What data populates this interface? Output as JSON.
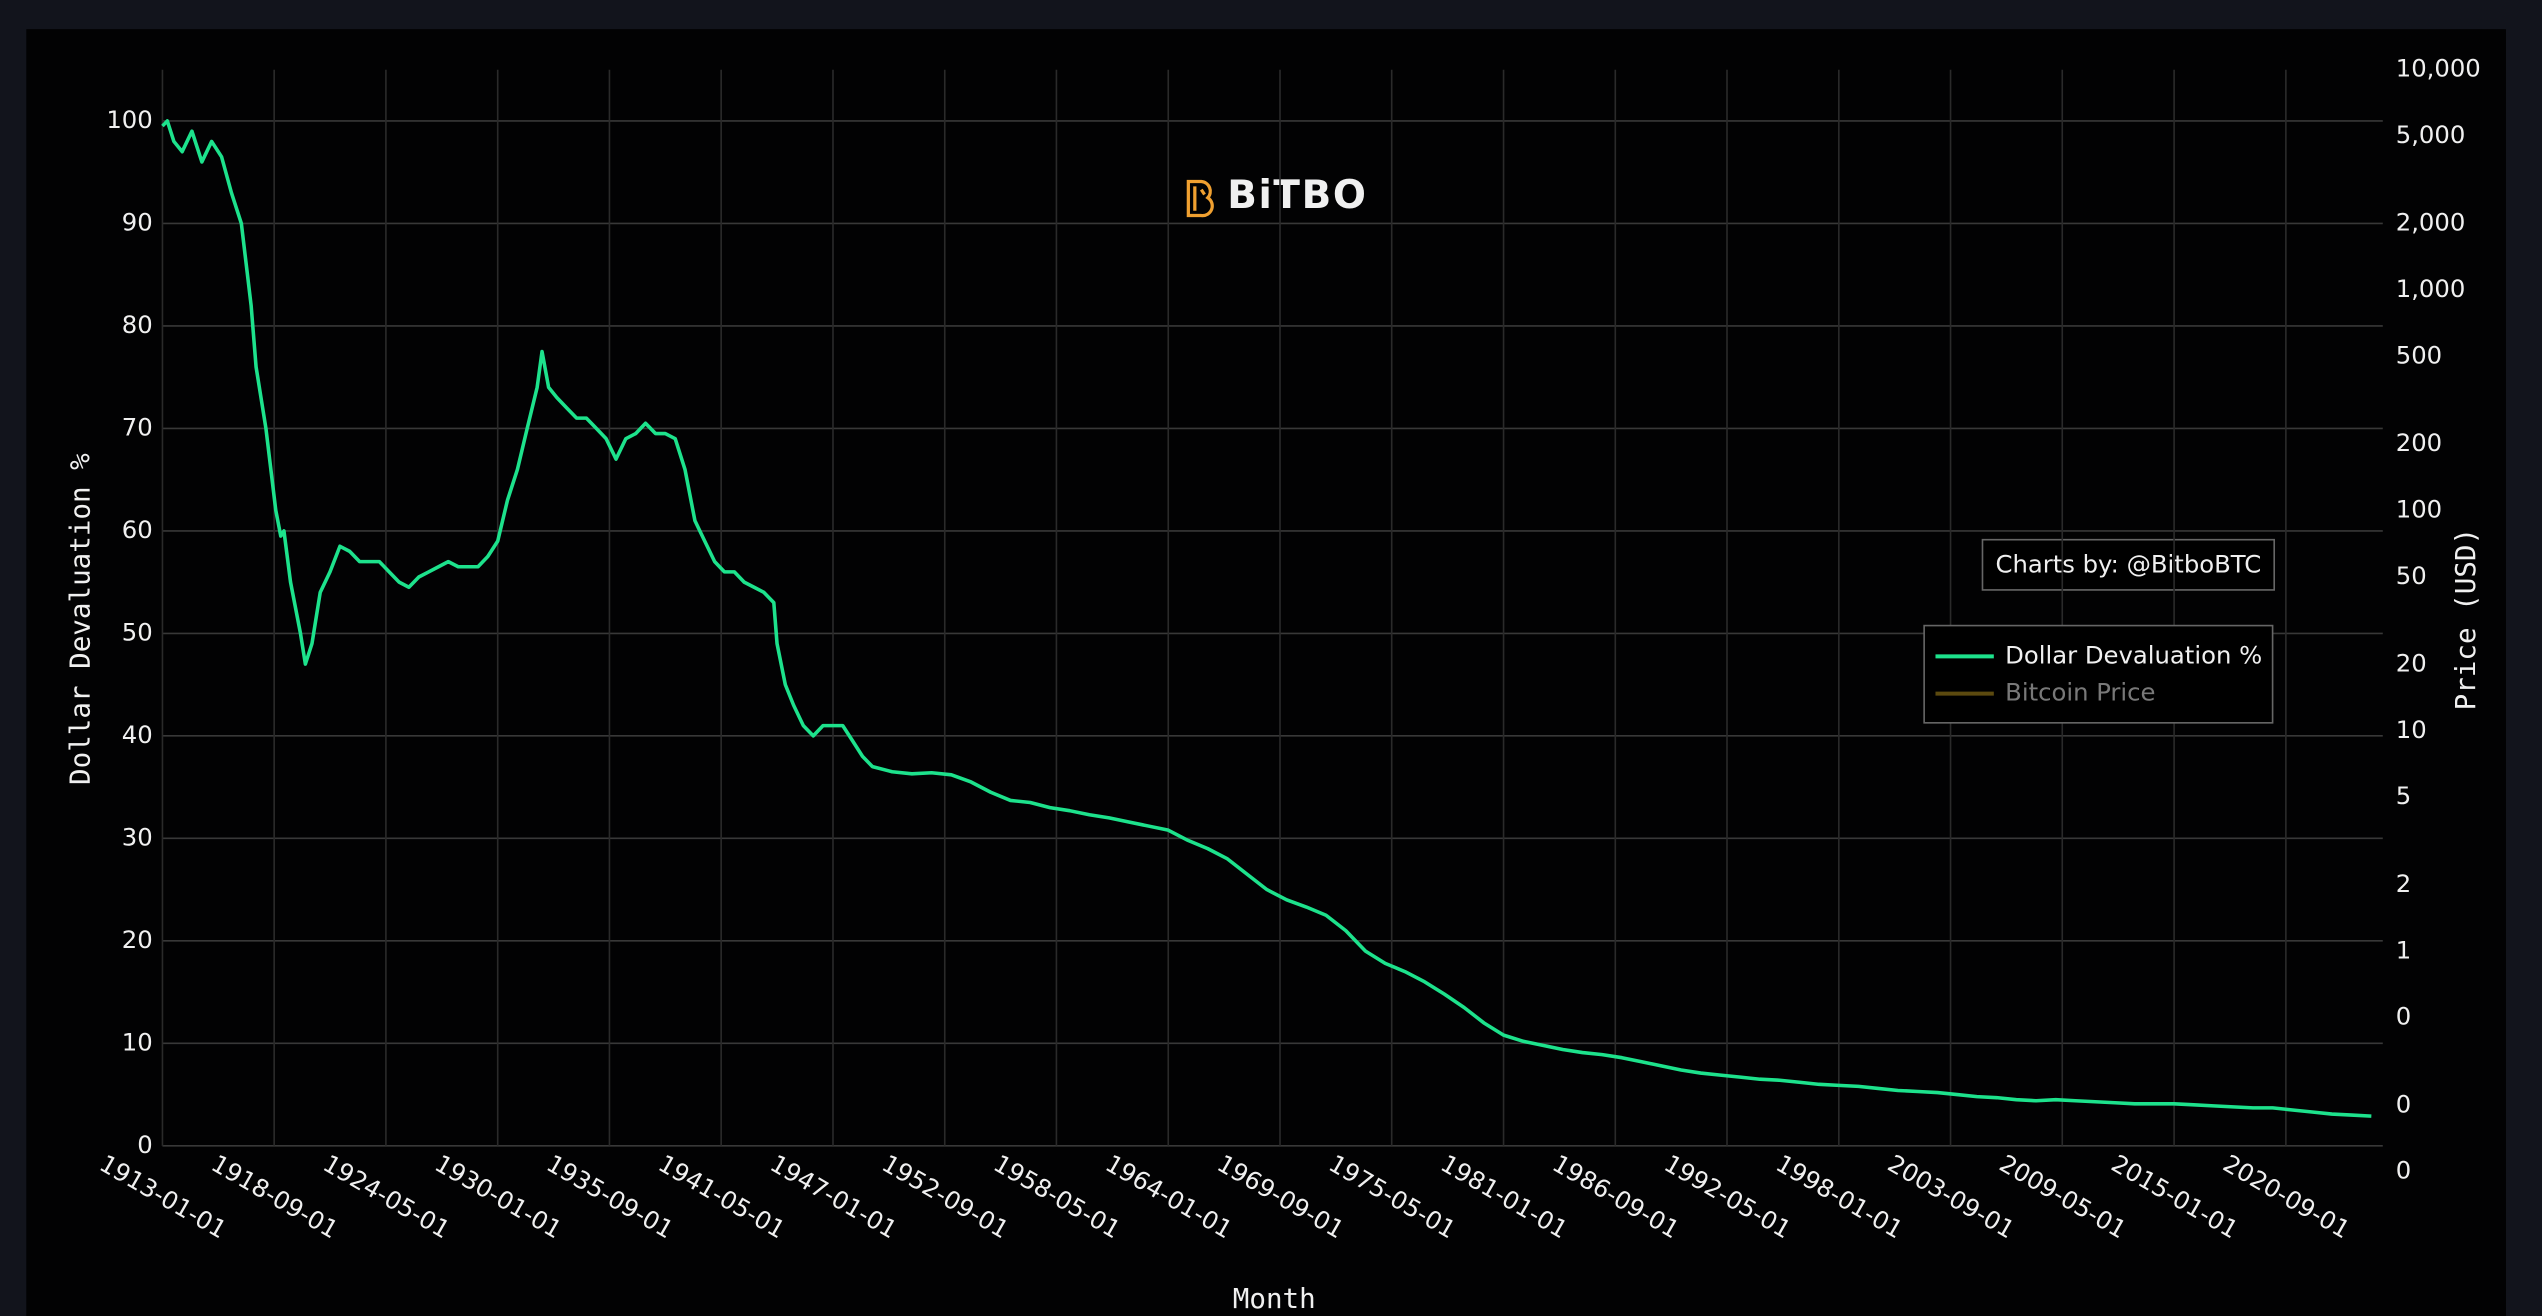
{
  "logo": "BiTBO",
  "chart_data": {
    "type": "line",
    "annotation": "Charts by: @BitboBTC",
    "x_label": "Month",
    "y_label": "Dollar Devaluation %",
    "y2_label": "Price (USD)",
    "grid": true,
    "legend": "right",
    "xlim": [
      "1913-01-01",
      "2025-08-01"
    ],
    "xticks": [
      "1913-01-01",
      "1918-09-01",
      "1924-05-01",
      "1930-01-01",
      "1935-09-01",
      "1941-05-01",
      "1947-01-01",
      "1952-09-01",
      "1958-05-01",
      "1964-01-01",
      "1969-09-01",
      "1975-05-01",
      "1981-01-01",
      "1986-09-01",
      "1992-05-01",
      "1998-01-01",
      "2003-09-01",
      "2009-05-01",
      "2015-01-01",
      "2020-09-01"
    ],
    "ylim": [
      0,
      105
    ],
    "yticks": [
      0,
      10,
      20,
      30,
      40,
      50,
      60,
      70,
      80,
      90,
      100
    ],
    "y2lim": [
      0.131,
      10000
    ],
    "y2log": true,
    "y2ticks": [
      {
        "value": 10000,
        "label": "10,000"
      },
      {
        "value": 5000,
        "label": "5,000"
      },
      {
        "value": 2000,
        "label": "2,000"
      },
      {
        "value": 1000,
        "label": "1,000"
      },
      500,
      200,
      100,
      50,
      20,
      10,
      5,
      2,
      1,
      {
        "value": 0.5,
        "label": "0"
      },
      {
        "value": 0.2,
        "label": "0"
      },
      {
        "value": 0.1,
        "label": "0"
      }
    ],
    "x": [
      "1913-01-01",
      "1913-04-01",
      "1913-08-01",
      "1914-01-01",
      "1914-07-01",
      "1915-01-01",
      "1915-07-01",
      "1916-01-01",
      "1916-07-01",
      "1917-01-01",
      "1917-07-01",
      "1917-10-01",
      "1918-04-01",
      "1918-10-01",
      "1919-01-01",
      "1919-03-01",
      "1919-07-01",
      "1920-01-01",
      "1920-04-01",
      "1920-08-01",
      "1921-01-01",
      "1921-07-01",
      "1922-01-01",
      "1922-07-01",
      "1923-01-01",
      "1923-07-01",
      "1924-01-01",
      "1924-07-01",
      "1925-01-01",
      "1925-07-01",
      "1926-01-01",
      "1926-07-01",
      "1927-01-01",
      "1927-07-01",
      "1928-01-01",
      "1929-01-01",
      "1929-07-01",
      "1930-01-01",
      "1930-07-01",
      "1931-01-01",
      "1931-07-01",
      "1932-01-01",
      "1932-04-01",
      "1932-08-01",
      "1933-01-01",
      "1933-07-01",
      "1934-01-01",
      "1934-07-01",
      "1935-01-01",
      "1935-07-01",
      "1936-01-01",
      "1936-07-01",
      "1937-01-01",
      "1937-07-01",
      "1938-01-01",
      "1938-07-01",
      "1939-01-01",
      "1939-07-01",
      "1940-01-01",
      "1940-07-01",
      "1941-01-01",
      "1941-07-01",
      "1942-01-01",
      "1942-07-01",
      "1943-01-01",
      "1943-07-01",
      "1944-01-01",
      "1944-03-01",
      "1944-08-01",
      "1945-01-01",
      "1945-07-01",
      "1946-01-01",
      "1946-07-01",
      "1947-01-01",
      "1947-07-01",
      "1948-01-01",
      "1948-07-01",
      "1949-01-01",
      "1950-01-01",
      "1951-01-01",
      "1952-01-01",
      "1953-01-01",
      "1954-01-01",
      "1955-01-01",
      "1956-01-01",
      "1957-01-01",
      "1958-01-01",
      "1959-01-01",
      "1960-01-01",
      "1961-01-01",
      "1962-01-01",
      "1963-01-01",
      "1964-01-01",
      "1965-01-01",
      "1966-01-01",
      "1967-01-01",
      "1968-01-01",
      "1969-01-01",
      "1970-01-01",
      "1971-01-01",
      "1972-01-01",
      "1973-01-01",
      "1974-01-01",
      "1975-01-01",
      "1976-01-01",
      "1977-01-01",
      "1978-01-01",
      "1979-01-01",
      "1980-01-01",
      "1981-01-01",
      "1982-01-01",
      "1983-01-01",
      "1984-01-01",
      "1985-01-01",
      "1986-01-01",
      "1987-01-01",
      "1988-01-01",
      "1989-01-01",
      "1990-01-01",
      "1991-01-01",
      "1992-01-01",
      "1993-01-01",
      "1994-01-01",
      "1995-01-01",
      "1996-01-01",
      "1997-01-01",
      "1998-01-01",
      "1999-01-01",
      "2000-01-01",
      "2001-01-01",
      "2002-01-01",
      "2003-01-01",
      "2004-01-01",
      "2005-01-01",
      "2006-01-01",
      "2007-01-01",
      "2008-01-01",
      "2009-01-01",
      "2010-01-01",
      "2011-01-01",
      "2012-01-01",
      "2013-01-01",
      "2014-01-01",
      "2015-01-01",
      "2016-01-01",
      "2017-01-01",
      "2018-01-01",
      "2019-01-01",
      "2020-01-01",
      "2021-01-01",
      "2022-01-01",
      "2023-01-01",
      "2024-01-01",
      "2025-01-01"
    ],
    "series": [
      {
        "name": "Dollar Devaluation %",
        "color": "#1de28c",
        "values": [
          99.5,
          100,
          98,
          97,
          99,
          96,
          98,
          96.5,
          93,
          90,
          82,
          76,
          70,
          62,
          59.5,
          60,
          55,
          50,
          47,
          49,
          54,
          56,
          58.5,
          58,
          57,
          57,
          57,
          56,
          55,
          54.5,
          55.5,
          56,
          56.5,
          57,
          56.5,
          56.5,
          57.5,
          59,
          63,
          66,
          70,
          74,
          77.5,
          74,
          73,
          72,
          71,
          71,
          70,
          69,
          67,
          69,
          69.5,
          70.5,
          69.5,
          69.5,
          69,
          66,
          61,
          59,
          57,
          56,
          56,
          55,
          54.5,
          54,
          53,
          49,
          45,
          43,
          41,
          40,
          41,
          41,
          41,
          39.5,
          38,
          37,
          36.5,
          36.3,
          36.4,
          36.2,
          35.5,
          34.5,
          33.7,
          33.5,
          33,
          32.7,
          32.3,
          32,
          31.6,
          31.2,
          30.8,
          29.8,
          29,
          28,
          26.5,
          25,
          24,
          23.3,
          22.5,
          21,
          19,
          17.8,
          17,
          16,
          14.8,
          13.5,
          12,
          10.8,
          10.2,
          9.8,
          9.4,
          9.1,
          8.9,
          8.6,
          8.2,
          7.8,
          7.4,
          7.1,
          6.9,
          6.7,
          6.5,
          6.4,
          6.2,
          6.0,
          5.9,
          5.8,
          5.6,
          5.4,
          5.3,
          5.2,
          5.0,
          4.8,
          4.7,
          4.5,
          4.4,
          4.5,
          4.4,
          4.3,
          4.2,
          4.1,
          4.1,
          4.1,
          4.0,
          3.9,
          3.8,
          3.7,
          3.7,
          3.5,
          3.3,
          3.1,
          3.0,
          2.9
        ]
      },
      {
        "name": "Bitcoin Price",
        "color": "#b8941f",
        "axis": "y2",
        "hidden": true
      }
    ]
  }
}
